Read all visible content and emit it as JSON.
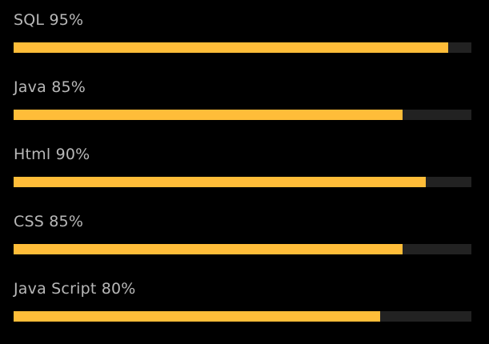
{
  "colors": {
    "background": "#000000",
    "label": "#b8b8b8",
    "track": "#222222",
    "fill": "#ffbd39"
  },
  "skills": [
    {
      "name": "SQL",
      "percent_label": "95%",
      "value": 95
    },
    {
      "name": "Java",
      "percent_label": "85%",
      "value": 85
    },
    {
      "name": "Html",
      "percent_label": "90%",
      "value": 90
    },
    {
      "name": "CSS",
      "percent_label": "85%",
      "value": 85
    },
    {
      "name": "Java Script",
      "percent_label": "80%",
      "value": 80
    }
  ]
}
